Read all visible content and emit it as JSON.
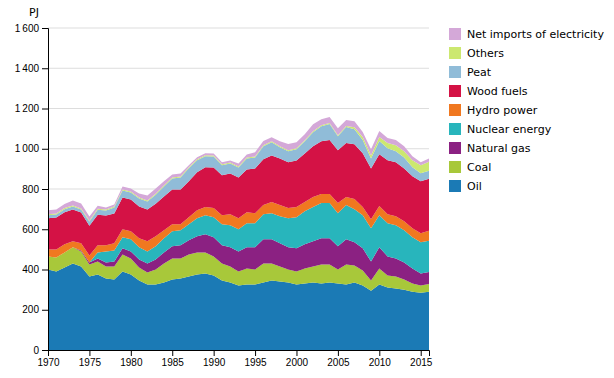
{
  "chart_data": {
    "type": "area",
    "stacked": true,
    "ylabel": "PJ",
    "x": [
      1970,
      1971,
      1972,
      1973,
      1974,
      1975,
      1976,
      1977,
      1978,
      1979,
      1980,
      1981,
      1982,
      1983,
      1984,
      1985,
      1986,
      1987,
      1988,
      1989,
      1990,
      1991,
      1992,
      1993,
      1994,
      1995,
      1996,
      1997,
      1998,
      1999,
      2000,
      2001,
      2002,
      2003,
      2004,
      2005,
      2006,
      2007,
      2008,
      2009,
      2010,
      2011,
      2012,
      2013,
      2014,
      2015,
      2016
    ],
    "series": [
      {
        "name": "Oil",
        "color": "#1b7ab5",
        "values": [
          400,
          390,
          410,
          430,
          415,
          365,
          375,
          355,
          350,
          390,
          375,
          345,
          325,
          325,
          335,
          350,
          355,
          365,
          375,
          380,
          370,
          345,
          335,
          320,
          325,
          325,
          335,
          345,
          340,
          335,
          325,
          330,
          335,
          330,
          335,
          330,
          325,
          335,
          320,
          295,
          325,
          310,
          305,
          300,
          290,
          285,
          290
        ]
      },
      {
        "name": "Coal",
        "color": "#a8c83a",
        "values": [
          65,
          70,
          75,
          80,
          75,
          60,
          65,
          60,
          65,
          85,
          80,
          65,
          60,
          75,
          95,
          105,
          100,
          110,
          110,
          105,
          95,
          85,
          80,
          70,
          80,
          75,
          95,
          85,
          75,
          65,
          65,
          75,
          80,
          95,
          90,
          70,
          100,
          85,
          75,
          50,
          80,
          60,
          60,
          50,
          40,
          35,
          38
        ]
      },
      {
        "name": "Natural gas",
        "color": "#8b2182",
        "values": [
          0,
          0,
          0,
          0,
          5,
          10,
          15,
          20,
          25,
          30,
          35,
          40,
          45,
          50,
          55,
          60,
          65,
          70,
          80,
          90,
          95,
          90,
          95,
          100,
          105,
          110,
          120,
          120,
          115,
          110,
          115,
          120,
          125,
          130,
          130,
          115,
          125,
          115,
          110,
          95,
          105,
          95,
          90,
          85,
          75,
          60,
          60
        ]
      },
      {
        "name": "Nuclear energy",
        "color": "#28b5bc",
        "values": [
          0,
          0,
          0,
          0,
          0,
          0,
          30,
          55,
          55,
          55,
          60,
          60,
          60,
          65,
          70,
          75,
          75,
          80,
          90,
          95,
          100,
          105,
          110,
          110,
          120,
          120,
          125,
          130,
          135,
          145,
          155,
          165,
          170,
          175,
          175,
          165,
          170,
          165,
          165,
          165,
          160,
          165,
          165,
          160,
          155,
          155,
          155
        ]
      },
      {
        "name": "Hydro power",
        "color": "#f07820",
        "values": [
          35,
          40,
          40,
          30,
          35,
          35,
          35,
          30,
          35,
          40,
          40,
          45,
          50,
          50,
          40,
          35,
          30,
          35,
          40,
          40,
          45,
          45,
          55,
          55,
          55,
          50,
          45,
          55,
          55,
          50,
          50,
          45,
          50,
          45,
          45,
          50,
          40,
          50,
          40,
          45,
          45,
          45,
          45,
          45,
          45,
          45,
          50
        ]
      },
      {
        "name": "Wood fuels",
        "color": "#d41245",
        "values": [
          155,
          158,
          160,
          158,
          153,
          148,
          152,
          148,
          148,
          158,
          158,
          158,
          158,
          162,
          168,
          172,
          172,
          178,
          188,
          198,
          202,
          198,
          202,
          202,
          212,
          222,
          228,
          232,
          232,
          228,
          232,
          242,
          252,
          262,
          268,
          262,
          268,
          272,
          268,
          252,
          258,
          268,
          268,
          262,
          258,
          258,
          258
        ]
      },
      {
        "name": "Peat",
        "color": "#90bcd8",
        "values": [
          15,
          15,
          15,
          15,
          15,
          20,
          25,
          25,
          30,
          35,
          35,
          40,
          40,
          45,
          50,
          55,
          60,
          65,
          60,
          55,
          55,
          50,
          50,
          50,
          55,
          55,
          65,
          65,
          55,
          55,
          55,
          60,
          70,
          75,
          80,
          70,
          80,
          75,
          65,
          50,
          65,
          60,
          55,
          55,
          45,
          40,
          40
        ]
      },
      {
        "name": "Others",
        "color": "#cce870",
        "values": [
          5,
          5,
          5,
          5,
          5,
          5,
          5,
          5,
          5,
          5,
          5,
          5,
          5,
          5,
          5,
          5,
          5,
          5,
          5,
          5,
          5,
          5,
          5,
          5,
          5,
          5,
          5,
          5,
          5,
          5,
          5,
          5,
          5,
          5,
          5,
          5,
          5,
          10,
          15,
          15,
          20,
          25,
          30,
          30,
          35,
          40,
          45
        ]
      },
      {
        "name": "Net imports of electricity",
        "color": "#d4a8d8",
        "values": [
          20,
          20,
          20,
          25,
          25,
          20,
          15,
          10,
          10,
          15,
          15,
          20,
          25,
          25,
          20,
          15,
          15,
          10,
          10,
          10,
          10,
          10,
          10,
          15,
          15,
          20,
          20,
          20,
          25,
          30,
          30,
          30,
          35,
          30,
          30,
          35,
          30,
          30,
          25,
          30,
          30,
          25,
          25,
          25,
          20,
          15,
          15
        ]
      }
    ],
    "xlim": [
      1970,
      2016
    ],
    "xticks": [
      1970,
      1975,
      1980,
      1985,
      1990,
      1995,
      2000,
      2005,
      2010,
      2015
    ],
    "ylim": [
      0,
      1600
    ],
    "yticks": [
      0,
      200,
      400,
      600,
      800,
      {
        "value": 1000,
        "label": "1 000"
      },
      {
        "value": 1200,
        "label": "1 200"
      },
      {
        "value": 1400,
        "label": "1 400"
      },
      {
        "value": 1600,
        "label": "1 600"
      }
    ],
    "grid": true,
    "legend": "right"
  }
}
